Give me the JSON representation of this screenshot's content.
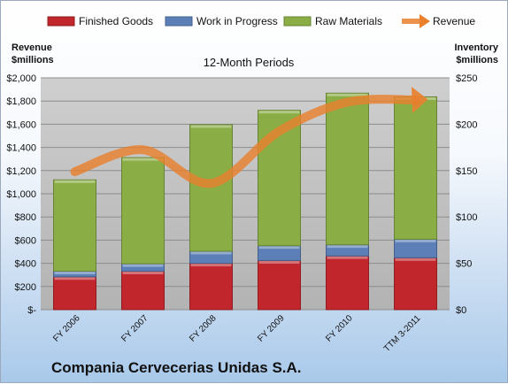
{
  "chart_data": {
    "type": "bar",
    "stacked": true,
    "title": "12-Month Periods",
    "company": "Compania Cervecerias Unidas S.A.",
    "categories": [
      "FY 2006",
      "FY 2007",
      "FY 2008",
      "FY 2009",
      "FY 2010",
      "TTM 3-2011"
    ],
    "y_left_label_line1": "Revenue",
    "y_left_label_line2": "$millions",
    "y_right_label_line1": "Inventory",
    "y_right_label_line2": "$millions",
    "y_left_range": [
      0,
      2000
    ],
    "y_left_ticks": [
      "$-",
      "$200",
      "$400",
      "$600",
      "$800",
      "$1,000",
      "$1,200",
      "$1,400",
      "$1,600",
      "$1,800",
      "$2,000"
    ],
    "y_right_range": [
      0,
      250
    ],
    "y_right_ticks": [
      "$0",
      "$50",
      "$100",
      "$150",
      "$200",
      "$250"
    ],
    "grid": true,
    "legend_position": "top",
    "series": [
      {
        "name": "Finished Goods",
        "axis": "right",
        "color": "#c0262c",
        "values": [
          35.5,
          41.5,
          50,
          53,
          58,
          56
        ]
      },
      {
        "name": "Work in Progress",
        "axis": "right",
        "color": "#5b7fb6",
        "values": [
          6,
          8,
          13,
          16,
          12,
          20
        ]
      },
      {
        "name": "Raw Materials",
        "axis": "right",
        "color": "#8aae45",
        "values": [
          98.5,
          114.5,
          136.5,
          146,
          163.5,
          153.5
        ]
      }
    ],
    "line_series": {
      "name": "Revenue",
      "axis": "left",
      "color": "#e8802e",
      "values": [
        1190,
        1380,
        1090,
        1540,
        1790,
        1810
      ]
    }
  }
}
